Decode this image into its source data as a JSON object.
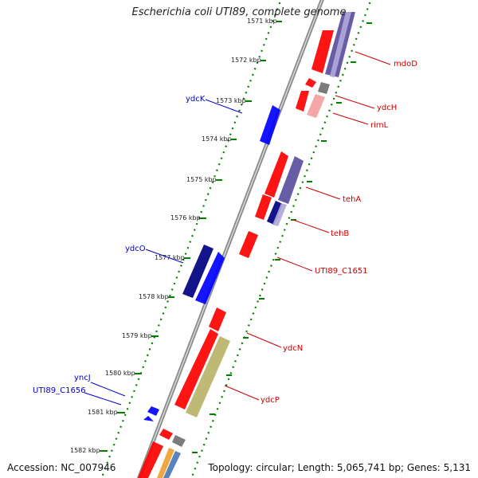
{
  "title": "Escherichia coli UTI89, complete genome",
  "accession": "Accession: NC_007946",
  "summary": "Topology: circular; Length: 5,065,741 bp; Genes: 5,131",
  "ticks": [
    {
      "label": "1571 kbp",
      "faded": true
    },
    {
      "label": "1572 kbp"
    },
    {
      "label": "1573 kbp"
    },
    {
      "label": "1574 kbp"
    },
    {
      "label": "1575 kbp"
    },
    {
      "label": "1576 kbp"
    },
    {
      "label": "1577 kbp"
    },
    {
      "label": "1578 kbp"
    },
    {
      "label": "1579 kbp"
    },
    {
      "label": "1580 kbp"
    },
    {
      "label": "1581 kbp"
    },
    {
      "label": "1582 kbp"
    }
  ],
  "gene_labels": {
    "reverse": [
      "ydcK",
      "ydcO",
      "yncJ",
      "UTI89_C1656"
    ],
    "forward": [
      "mdoD",
      "ydcH",
      "rimL",
      "tehA",
      "tehB",
      "UTI89_C1651",
      "ydcN",
      "ydcP"
    ]
  },
  "colors": {
    "forward_cds": "#ff0000",
    "forward_light": "#f4a0a0",
    "reverse_cds": "#0000ff",
    "reverse_dark": "#000080",
    "cog_purple": "#5a4fa0",
    "cog_lavender": "#b0a8d8",
    "cog_olive": "#b8b46a",
    "cog_orange": "#f0a030",
    "cog_steel": "#4a7ab8",
    "cog_gray": "#707070",
    "backbone": "#8a8a8a",
    "tick_green": "#008000",
    "forward_label": "#cc0000",
    "reverse_label": "#0000cc"
  }
}
